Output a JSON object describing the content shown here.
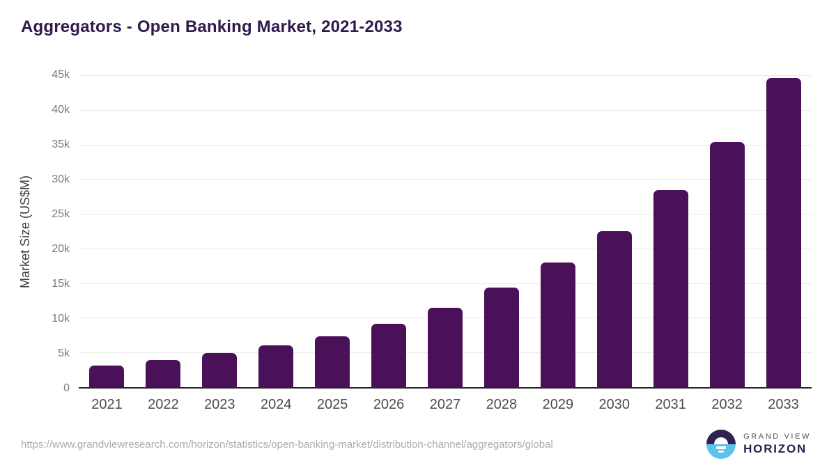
{
  "chart_data": {
    "type": "bar",
    "title": "Aggregators - Open Banking Market, 2021-2033",
    "categories": [
      "2021",
      "2022",
      "2023",
      "2024",
      "2025",
      "2026",
      "2027",
      "2028",
      "2029",
      "2030",
      "2031",
      "2032",
      "2033"
    ],
    "values": [
      3100,
      3900,
      4900,
      6000,
      7300,
      9100,
      11500,
      14400,
      18000,
      22500,
      28400,
      35400,
      44600
    ],
    "unit": "US$M",
    "xlabel": "",
    "ylabel": "Market Size (US$M)",
    "ylim": [
      0,
      45000
    ],
    "yticks": [
      {
        "value": 0,
        "label": "0"
      },
      {
        "value": 5000,
        "label": "5k"
      },
      {
        "value": 10000,
        "label": "10k"
      },
      {
        "value": 15000,
        "label": "15k"
      },
      {
        "value": 20000,
        "label": "20k"
      },
      {
        "value": 25000,
        "label": "25k"
      },
      {
        "value": 30000,
        "label": "30k"
      },
      {
        "value": 35000,
        "label": "35k"
      },
      {
        "value": 40000,
        "label": "40k"
      },
      {
        "value": 45000,
        "label": "45k"
      }
    ],
    "grid": true,
    "legend": false,
    "bar_color": "#4a1159"
  },
  "footer": {
    "source_url": "https://www.grandviewresearch.com/horizon/statistics/open-banking-market/distribution-channel/aggregators/global",
    "logo_top": "GRAND VIEW",
    "logo_bottom": "HORIZON"
  },
  "colors": {
    "title": "#2e1a4d",
    "bar": "#4a1159",
    "axis_line": "#262626",
    "gridline": "#e9e9e9",
    "y_tick_label": "#7a7a7a",
    "x_tick_label": "#4d4d4d",
    "y_axis_title": "#3d3d3d",
    "source_url": "#ababab",
    "logo_dark": "#2e2252",
    "logo_blue": "#5fc2ee",
    "logo_grand_view_text": "#4f4f4f",
    "logo_horizon_text": "#2e1a4d"
  }
}
